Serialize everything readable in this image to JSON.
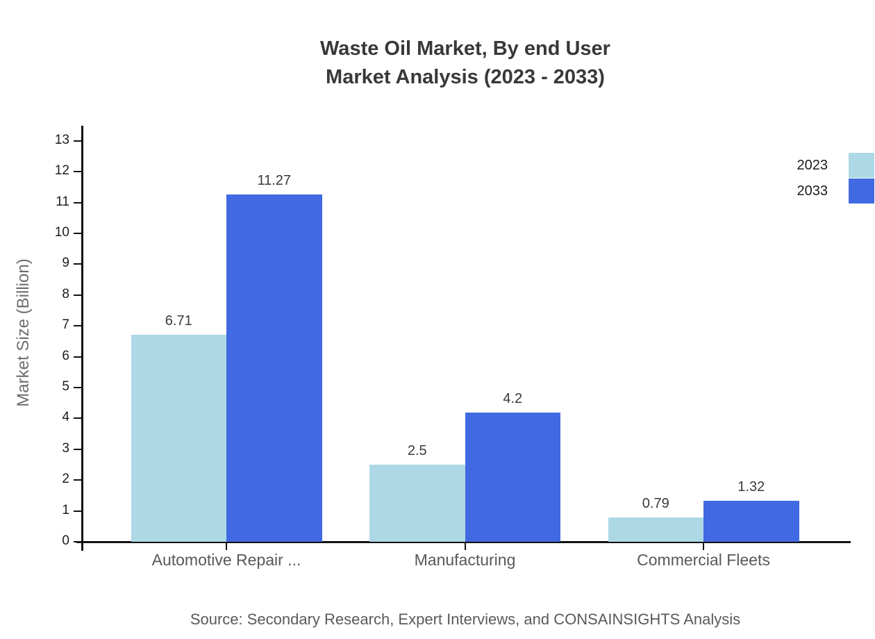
{
  "chart_data": {
    "type": "bar",
    "title_lines": [
      "Waste Oil Market, By end User",
      "Market Analysis (2023 - 2033)"
    ],
    "ylabel": "Market Size (Billion)",
    "xlabel": "",
    "ylim": [
      0,
      13
    ],
    "yticks": [
      0,
      1,
      2,
      3,
      4,
      5,
      6,
      7,
      8,
      9,
      10,
      11,
      12,
      13
    ],
    "grid": false,
    "legend_position": "top-right",
    "categories": [
      "Automotive Repair ...",
      "Manufacturing",
      "Commercial Fleets"
    ],
    "series": [
      {
        "name": "2023",
        "color": "#ADD8E6",
        "values": [
          6.71,
          2.5,
          0.79
        ]
      },
      {
        "name": "2033",
        "color": "#4169E1",
        "values": [
          11.27,
          4.2,
          1.32
        ]
      }
    ],
    "source": "Source: Secondary Research, Expert Interviews, and CONSAINSIGHTS Analysis",
    "axis_color": "#111111"
  }
}
